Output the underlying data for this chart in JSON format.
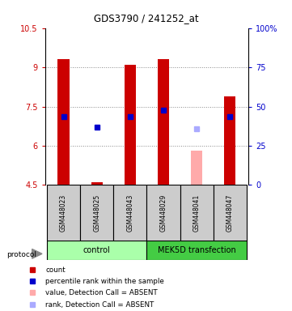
{
  "title": "GDS3790 / 241252_at",
  "samples": [
    "GSM448023",
    "GSM448025",
    "GSM448043",
    "GSM448029",
    "GSM448041",
    "GSM448047"
  ],
  "ylim_left": [
    4.5,
    10.5
  ],
  "ylim_right": [
    0,
    100
  ],
  "yticks_left": [
    4.5,
    6.0,
    7.5,
    9.0,
    10.5
  ],
  "ytick_labels_left": [
    "4.5",
    "6",
    "7.5",
    "9",
    "10.5"
  ],
  "yticks_right": [
    0,
    25,
    50,
    75,
    100
  ],
  "ytick_labels_right": [
    "0",
    "25",
    "50",
    "75",
    "100%"
  ],
  "bar_bottom": 4.5,
  "bars_red": {
    "values": [
      9.3,
      4.6,
      9.1,
      9.3,
      null,
      7.9
    ],
    "color": "#cc0000"
  },
  "bars_pink": {
    "values": [
      null,
      null,
      null,
      null,
      5.8,
      null
    ],
    "color": "#ffaaaa"
  },
  "dots_blue": {
    "values": [
      7.1,
      6.7,
      7.1,
      7.35,
      null,
      7.1
    ],
    "color": "#0000cc"
  },
  "dots_lightblue": {
    "values": [
      null,
      null,
      null,
      null,
      6.65,
      null
    ],
    "color": "#aaaaff"
  },
  "group_colors": {
    "control": "#aaffaa",
    "MEK5D transfection": "#44cc44"
  },
  "sample_box_color": "#cccccc",
  "background_color": "#ffffff",
  "grid_color": "#888888",
  "grid_yticks": [
    6.0,
    7.5,
    9.0
  ],
  "legend_items": [
    {
      "label": "count",
      "color": "#cc0000"
    },
    {
      "label": "percentile rank within the sample",
      "color": "#0000cc"
    },
    {
      "label": "value, Detection Call = ABSENT",
      "color": "#ffaaaa"
    },
    {
      "label": "rank, Detection Call = ABSENT",
      "color": "#aaaaff"
    }
  ],
  "bar_width": 0.35,
  "xlim": [
    -0.55,
    5.55
  ],
  "left_axis_color": "#cc0000",
  "right_axis_color": "#0000cc"
}
